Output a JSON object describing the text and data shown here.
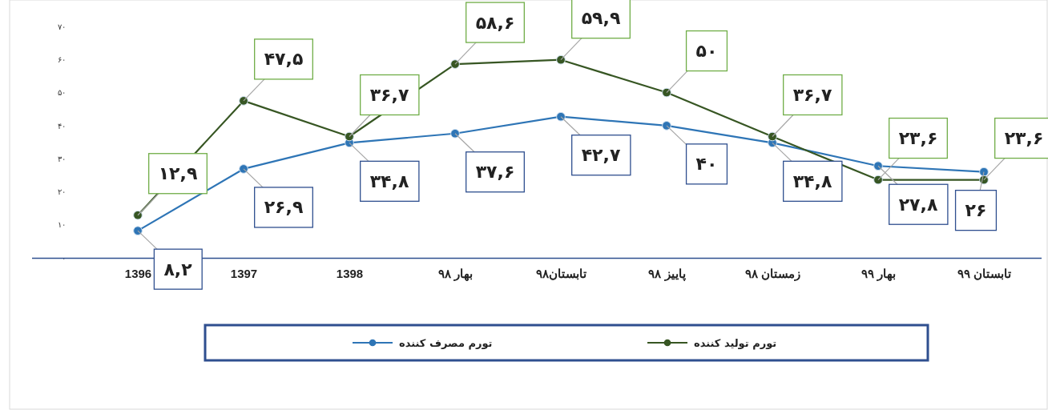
{
  "chart_data": {
    "type": "line",
    "categories": [
      "1396",
      "1397",
      "1398",
      "بهار ۹۸",
      "تابستان۹۸",
      "پاییز ۹۸",
      "زمستان ۹۸",
      "بهار ۹۹",
      "تابستان ۹۹"
    ],
    "series": [
      {
        "name": "تورم مصرف کننده",
        "color": "#2e75b6",
        "values": [
          8.2,
          26.9,
          34.8,
          37.6,
          42.7,
          40,
          34.8,
          27.8,
          26
        ],
        "value_labels": [
          "۸,۲",
          "۲۶,۹",
          "۳۴,۸",
          "۳۷,۶",
          "۴۲,۷",
          "۴۰",
          "۳۴,۸",
          "۲۷,۸",
          "۲۶"
        ]
      },
      {
        "name": "تورم تولید کننده",
        "color": "#375623",
        "values": [
          12.9,
          47.5,
          36.7,
          58.6,
          59.9,
          50,
          36.7,
          23.6,
          23.6
        ],
        "value_labels": [
          "۱۲,۹",
          "۴۷,۵",
          "۳۶,۷",
          "۵۸,۶",
          "۵۹,۹",
          "۵۰",
          "۳۶,۷",
          "۲۳,۶",
          "۲۳,۶"
        ]
      }
    ],
    "ylim": [
      0,
      70
    ],
    "yticks": [
      {
        "value": 0,
        "label": "۰"
      },
      {
        "value": 10,
        "label": "۱۰"
      },
      {
        "value": 20,
        "label": "۲۰"
      },
      {
        "value": 30,
        "label": "۳۰"
      },
      {
        "value": 40,
        "label": "۴۰"
      },
      {
        "value": 50,
        "label": "۵۰"
      },
      {
        "value": 60,
        "label": "۶۰"
      },
      {
        "value": 70,
        "label": "۷۰"
      }
    ],
    "marker": "circle",
    "grid": false,
    "legend": "bottom"
  }
}
